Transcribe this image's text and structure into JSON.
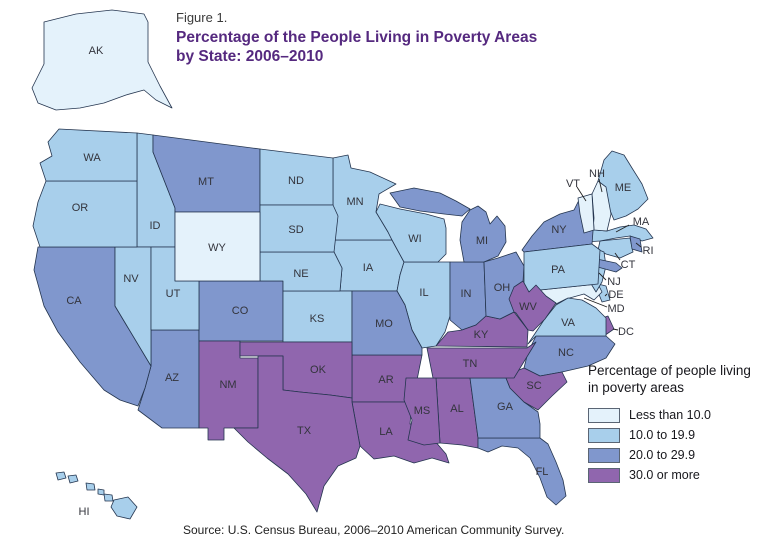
{
  "title": {
    "figure_label": "Figure 1.",
    "line1": "Percentage of the People Living in Poverty Areas",
    "line2": "by State: 2006–2010"
  },
  "legend": {
    "title_line1": "Percentage of people living",
    "title_line2": "in poverty areas",
    "categories": [
      {
        "label": "Less than 10.0",
        "color": "#e4f2fb"
      },
      {
        "label": "10.0 to 19.9",
        "color": "#a8cfeb"
      },
      {
        "label": "20.0 to 29.9",
        "color": "#8097cd"
      },
      {
        "label": "30.0 or more",
        "color": "#9066ae"
      }
    ]
  },
  "source": "Source: U.S. Census Bureau, 2006–2010 American Community Survey.",
  "chart_data": {
    "type": "choropleth-map",
    "title": "Percentage of the People Living in Poverty Areas by State: 2006–2010",
    "unit": "percent of people living in poverty areas",
    "categories": [
      "Less than 10.0",
      "10.0 to 19.9",
      "20.0 to 29.9",
      "30.0 or more"
    ],
    "states": [
      {
        "abbr": "AK",
        "category": "Less than 10.0"
      },
      {
        "abbr": "AL",
        "category": "30.0 or more"
      },
      {
        "abbr": "AR",
        "category": "30.0 or more"
      },
      {
        "abbr": "AZ",
        "category": "20.0 to 29.9"
      },
      {
        "abbr": "CA",
        "category": "20.0 to 29.9"
      },
      {
        "abbr": "CO",
        "category": "20.0 to 29.9"
      },
      {
        "abbr": "CT",
        "category": "10.0 to 19.9"
      },
      {
        "abbr": "DC",
        "category": "30.0 or more"
      },
      {
        "abbr": "DE",
        "category": "10.0 to 19.9"
      },
      {
        "abbr": "FL",
        "category": "20.0 to 29.9"
      },
      {
        "abbr": "GA",
        "category": "20.0 to 29.9"
      },
      {
        "abbr": "HI",
        "category": "10.0 to 19.9"
      },
      {
        "abbr": "IA",
        "category": "10.0 to 19.9"
      },
      {
        "abbr": "ID",
        "category": "10.0 to 19.9"
      },
      {
        "abbr": "IL",
        "category": "10.0 to 19.9"
      },
      {
        "abbr": "IN",
        "category": "20.0 to 29.9"
      },
      {
        "abbr": "KS",
        "category": "10.0 to 19.9"
      },
      {
        "abbr": "KY",
        "category": "30.0 or more"
      },
      {
        "abbr": "LA",
        "category": "30.0 or more"
      },
      {
        "abbr": "MA",
        "category": "10.0 to 19.9"
      },
      {
        "abbr": "MD",
        "category": "Less than 10.0"
      },
      {
        "abbr": "ME",
        "category": "10.0 to 19.9"
      },
      {
        "abbr": "MI",
        "category": "20.0 to 29.9"
      },
      {
        "abbr": "MN",
        "category": "10.0 to 19.9"
      },
      {
        "abbr": "MO",
        "category": "20.0 to 29.9"
      },
      {
        "abbr": "MS",
        "category": "30.0 or more"
      },
      {
        "abbr": "MT",
        "category": "20.0 to 29.9"
      },
      {
        "abbr": "NC",
        "category": "20.0 to 29.9"
      },
      {
        "abbr": "ND",
        "category": "10.0 to 19.9"
      },
      {
        "abbr": "NE",
        "category": "10.0 to 19.9"
      },
      {
        "abbr": "NH",
        "category": "Less than 10.0"
      },
      {
        "abbr": "NJ",
        "category": "10.0 to 19.9"
      },
      {
        "abbr": "NM",
        "category": "30.0 or more"
      },
      {
        "abbr": "NV",
        "category": "10.0 to 19.9"
      },
      {
        "abbr": "NY",
        "category": "20.0 to 29.9"
      },
      {
        "abbr": "OH",
        "category": "20.0 to 29.9"
      },
      {
        "abbr": "OK",
        "category": "30.0 or more"
      },
      {
        "abbr": "OR",
        "category": "10.0 to 19.9"
      },
      {
        "abbr": "PA",
        "category": "10.0 to 19.9"
      },
      {
        "abbr": "RI",
        "category": "20.0 to 29.9"
      },
      {
        "abbr": "SC",
        "category": "30.0 or more"
      },
      {
        "abbr": "SD",
        "category": "10.0 to 19.9"
      },
      {
        "abbr": "TN",
        "category": "30.0 or more"
      },
      {
        "abbr": "TX",
        "category": "30.0 or more"
      },
      {
        "abbr": "UT",
        "category": "10.0 to 19.9"
      },
      {
        "abbr": "VA",
        "category": "10.0 to 19.9"
      },
      {
        "abbr": "VT",
        "category": "Less than 10.0"
      },
      {
        "abbr": "WA",
        "category": "10.0 to 19.9"
      },
      {
        "abbr": "WI",
        "category": "10.0 to 19.9"
      },
      {
        "abbr": "WV",
        "category": "30.0 or more"
      },
      {
        "abbr": "WY",
        "category": "Less than 10.0"
      }
    ]
  }
}
